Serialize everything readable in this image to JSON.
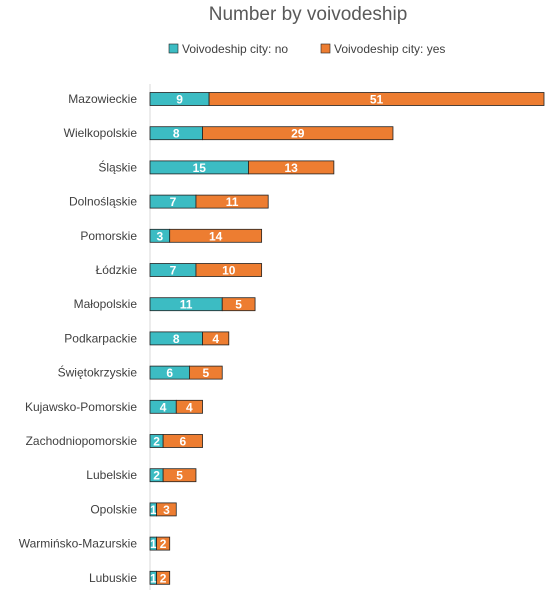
{
  "chart_data": {
    "type": "bar",
    "orientation": "horizontal",
    "stacked": true,
    "title": "Number by voivodeship",
    "legend_position": "top",
    "categories": [
      "Mazowieckie",
      "Wielkopolskie",
      "Śląskie",
      "Dolnośląskie",
      "Pomorskie",
      "Łódzkie",
      "Małopolskie",
      "Podkarpackie",
      "Świętokrzyskie",
      "Kujawsko-Pomorskie",
      "Zachodniopomorskie",
      "Lubelskie",
      "Opolskie",
      "Warmińsko-Mazurskie",
      "Lubuskie"
    ],
    "series": [
      {
        "name": "Voivodeship city: no",
        "color": "#3cbcc3",
        "values": [
          9,
          8,
          15,
          7,
          3,
          7,
          11,
          8,
          6,
          4,
          2,
          2,
          1,
          1,
          1
        ]
      },
      {
        "name": "Voivodeship city: yes",
        "color": "#ed7d31",
        "values": [
          51,
          29,
          13,
          11,
          14,
          10,
          5,
          4,
          5,
          4,
          6,
          5,
          3,
          2,
          2
        ]
      }
    ],
    "xlim": [
      0,
      60
    ],
    "grid": false
  }
}
